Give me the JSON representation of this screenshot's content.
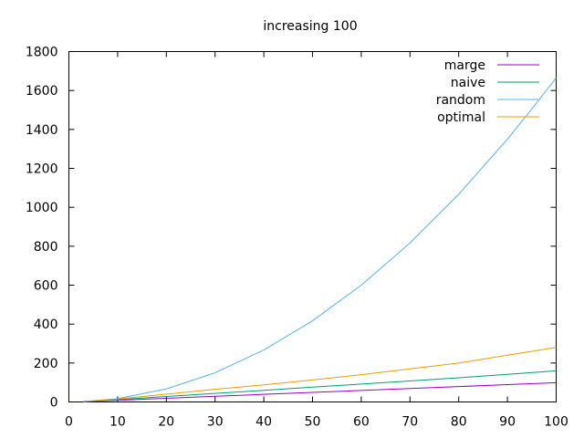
{
  "chart_data": {
    "type": "line",
    "title": "increasing 100",
    "xlabel": "",
    "ylabel": "",
    "xlim": [
      0,
      100
    ],
    "ylim": [
      0,
      1800
    ],
    "xticks": [
      0,
      10,
      20,
      30,
      40,
      50,
      60,
      70,
      80,
      90,
      100
    ],
    "yticks": [
      0,
      200,
      400,
      600,
      800,
      1000,
      1200,
      1400,
      1600,
      1800
    ],
    "grid": false,
    "legend_position": "top-right",
    "series": [
      {
        "name": "marge",
        "color": "#9400d3",
        "x": [
          3,
          10,
          20,
          30,
          40,
          50,
          60,
          70,
          80,
          90,
          100
        ],
        "y": [
          2,
          9,
          19,
          29,
          39,
          49,
          59,
          69,
          79,
          89,
          99
        ]
      },
      {
        "name": "naive",
        "color": "#009e73",
        "x": [
          3,
          10,
          20,
          30,
          40,
          50,
          60,
          70,
          80,
          90,
          100
        ],
        "y": [
          3,
          12,
          28,
          44,
          60,
          76,
          92,
          108,
          124,
          142,
          160
        ]
      },
      {
        "name": "random",
        "color": "#56b4e9",
        "x": [
          3,
          10,
          20,
          30,
          40,
          50,
          60,
          70,
          80,
          90,
          95,
          100
        ],
        "y": [
          2,
          17,
          67,
          150,
          267,
          417,
          600,
          817,
          1067,
          1350,
          1505,
          1665
        ]
      },
      {
        "name": "optimal",
        "color": "#e69f00",
        "x": [
          3,
          10,
          20,
          30,
          40,
          50,
          60,
          70,
          80,
          90,
          100
        ],
        "y": [
          3,
          15,
          40,
          65,
          88,
          113,
          140,
          170,
          200,
          240,
          280
        ]
      }
    ]
  }
}
